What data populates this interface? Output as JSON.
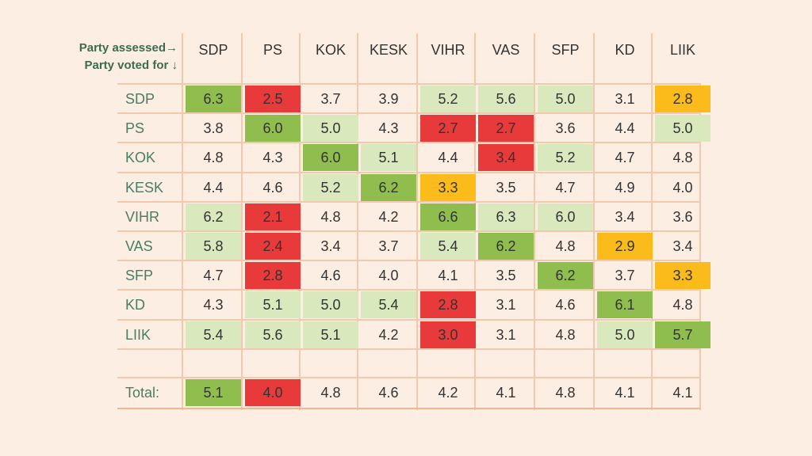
{
  "header": {
    "line1": "Party assessed→",
    "line2": "Party voted for ↓"
  },
  "colors": {
    "high": "#8fbe4e",
    "mid_high": "#d9e8bd",
    "neutral": "#ffffff",
    "low": "#fbbc1b",
    "lowest": "#e83a3a"
  },
  "chart_data": {
    "type": "table",
    "columns": [
      "SDP",
      "PS",
      "KOK",
      "KESK",
      "VIHR",
      "VAS",
      "SFP",
      "KD",
      "LIIK"
    ],
    "rows": [
      {
        "label": "SDP",
        "values": [
          "6.3",
          "2.5",
          "3.7",
          "3.9",
          "5.2",
          "5.6",
          "5.0",
          "3.1",
          "2.8"
        ],
        "shades": [
          "high",
          "lowest",
          "neutral",
          "neutral",
          "mid_high",
          "mid_high",
          "mid_high",
          "neutral",
          "low"
        ]
      },
      {
        "label": "PS",
        "values": [
          "3.8",
          "6.0",
          "5.0",
          "4.3",
          "2.7",
          "2.7",
          "3.6",
          "4.4",
          "5.0"
        ],
        "shades": [
          "neutral",
          "high",
          "mid_high",
          "neutral",
          "lowest",
          "lowest",
          "neutral",
          "neutral",
          "mid_high"
        ]
      },
      {
        "label": "KOK",
        "values": [
          "4.8",
          "4.3",
          "6.0",
          "5.1",
          "4.4",
          "3.4",
          "5.2",
          "4.7",
          "4.8"
        ],
        "shades": [
          "neutral",
          "neutral",
          "high",
          "mid_high",
          "neutral",
          "lowest",
          "mid_high",
          "neutral",
          "neutral"
        ]
      },
      {
        "label": "KESK",
        "values": [
          "4.4",
          "4.6",
          "5.2",
          "6.2",
          "3.3",
          "3.5",
          "4.7",
          "4.9",
          "4.0"
        ],
        "shades": [
          "neutral",
          "neutral",
          "mid_high",
          "high",
          "low",
          "neutral",
          "neutral",
          "neutral",
          "neutral"
        ]
      },
      {
        "label": "VIHR",
        "values": [
          "6.2",
          "2.1",
          "4.8",
          "4.2",
          "6.6",
          "6.3",
          "6.0",
          "3.4",
          "3.6"
        ],
        "shades": [
          "mid_high",
          "lowest",
          "neutral",
          "neutral",
          "high",
          "mid_high",
          "mid_high",
          "neutral",
          "neutral"
        ]
      },
      {
        "label": "VAS",
        "values": [
          "5.8",
          "2.4",
          "3.4",
          "3.7",
          "5.4",
          "6.2",
          "4.8",
          "2.9",
          "3.4"
        ],
        "shades": [
          "mid_high",
          "lowest",
          "neutral",
          "neutral",
          "mid_high",
          "high",
          "neutral",
          "low",
          "neutral"
        ]
      },
      {
        "label": "SFP",
        "values": [
          "4.7",
          "2.8",
          "4.6",
          "4.0",
          "4.1",
          "3.5",
          "6.2",
          "3.7",
          "3.3"
        ],
        "shades": [
          "neutral",
          "lowest",
          "neutral",
          "neutral",
          "neutral",
          "neutral",
          "high",
          "neutral",
          "low"
        ]
      },
      {
        "label": "KD",
        "values": [
          "4.3",
          "5.1",
          "5.0",
          "5.4",
          "2.8",
          "3.1",
          "4.6",
          "6.1",
          "4.8"
        ],
        "shades": [
          "neutral",
          "mid_high",
          "mid_high",
          "mid_high",
          "lowest",
          "neutral",
          "neutral",
          "high",
          "neutral"
        ]
      },
      {
        "label": "LIIK",
        "values": [
          "5.4",
          "5.6",
          "5.1",
          "4.2",
          "3.0",
          "3.1",
          "4.8",
          "5.0",
          "5.7"
        ],
        "shades": [
          "mid_high",
          "mid_high",
          "mid_high",
          "neutral",
          "lowest",
          "neutral",
          "neutral",
          "mid_high",
          "high"
        ]
      }
    ],
    "total": {
      "label": "Total:",
      "values": [
        "5.1",
        "4.0",
        "4.8",
        "4.6",
        "4.2",
        "4.1",
        "4.8",
        "4.1",
        "4.1"
      ],
      "shades": [
        "high",
        "lowest",
        "neutral",
        "neutral",
        "neutral",
        "neutral",
        "neutral",
        "neutral",
        "neutral"
      ]
    }
  }
}
